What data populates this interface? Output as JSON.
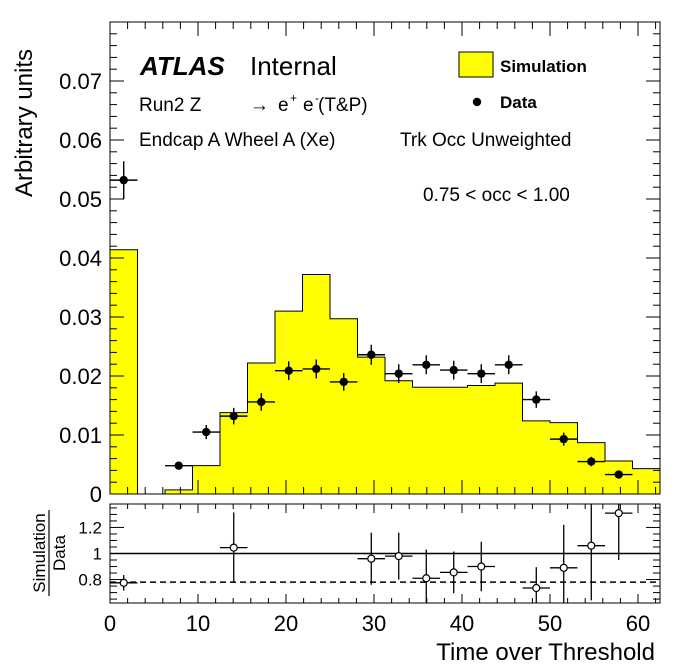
{
  "chart_data": [
    {
      "type": "histogram",
      "ylabel": "Arbitrary units",
      "xlim": [
        0,
        62.5
      ],
      "ylim": [
        0,
        0.08
      ],
      "y_ticks": [
        "0",
        "0.01",
        "0.02",
        "0.03",
        "0.04",
        "0.05",
        "0.06",
        "0.07"
      ],
      "y_tick_values": [
        0,
        0.01,
        0.02,
        0.03,
        0.04,
        0.05,
        0.06,
        0.07
      ],
      "annotations": {
        "atlas": "ATLAS",
        "internal": "Internal",
        "process_prefix": "Run2 Z",
        "process_arrow": "→",
        "process_e1": "e",
        "process_plus": "+",
        "process_e2": "e",
        "process_minus": "-",
        "process_suffix": "(T&P)",
        "region": "Endcap A Wheel A (Xe)",
        "weighting": "Trk Occ Unweighted",
        "occupancy": "0.75 < occ < 1.00"
      },
      "legend": {
        "placement": "top-right",
        "entries": [
          "Simulation",
          "Data"
        ]
      },
      "bin_edges": [
        0,
        3.125,
        6.25,
        9.375,
        12.5,
        15.625,
        18.75,
        21.875,
        25,
        28.125,
        31.25,
        34.375,
        37.5,
        40.625,
        43.75,
        46.875,
        50,
        53.125,
        56.25,
        59.375
      ],
      "series": [
        {
          "name": "Simulation",
          "color": "#ffff00",
          "values": [
            0.0414,
            0,
            0.0007,
            0.0048,
            0.0138,
            0.0222,
            0.031,
            0.0372,
            0.0297,
            0.0232,
            0.0192,
            0.0181,
            0.0181,
            0.0184,
            0.0188,
            0.0124,
            0.0121,
            0.0087,
            0.0056,
            0.0043
          ]
        },
        {
          "name": "Data",
          "color": "#000000",
          "x": [
            1.56,
            7.81,
            10.94,
            14.06,
            17.19,
            20.31,
            23.44,
            26.56,
            29.69,
            32.81,
            35.94,
            39.06,
            42.19,
            45.31,
            48.44,
            51.56,
            54.69,
            57.81
          ],
          "values": [
            0.0532,
            0.0048,
            0.0105,
            0.0132,
            0.0156,
            0.0209,
            0.0212,
            0.019,
            0.0236,
            0.0204,
            0.0219,
            0.021,
            0.0204,
            0.0219,
            0.016,
            0.0093,
            0.0055,
            0.0033
          ],
          "errors": [
            0.0032,
            0.0005,
            0.0012,
            0.0014,
            0.0015,
            0.0016,
            0.0016,
            0.0015,
            0.0017,
            0.0016,
            0.0016,
            0.0016,
            0.0016,
            0.0016,
            0.0014,
            0.0011,
            0.0008,
            0.0006
          ]
        }
      ]
    },
    {
      "type": "scatter",
      "ylabel_num": "Simulation",
      "ylabel_den": "Data",
      "xlabel": "Time over Threshold",
      "xlim": [
        0,
        62.5
      ],
      "ylim": [
        0.62,
        1.38
      ],
      "x_ticks": [
        "0",
        "10",
        "20",
        "30",
        "40",
        "50",
        "60"
      ],
      "x_tick_values": [
        0,
        10,
        20,
        30,
        40,
        50,
        60
      ],
      "y_ticks": [
        "0.8",
        "1",
        "1.2"
      ],
      "y_tick_values": [
        0.8,
        1.0,
        1.2
      ],
      "reference_line": 1.0,
      "mean_line": 0.78,
      "series": [
        {
          "name": "Simulation/Data",
          "x": [
            1.56,
            14.06,
            29.69,
            32.81,
            35.94,
            39.06,
            42.19,
            48.44,
            51.56,
            54.69,
            57.81
          ],
          "values": [
            0.775,
            1.045,
            0.96,
            0.98,
            0.81,
            0.855,
            0.9,
            0.735,
            0.89,
            1.06,
            1.31
          ],
          "errors": [
            0.06,
            0.27,
            0.2,
            0.18,
            0.22,
            0.16,
            0.19,
            0.16,
            0.33,
            0.42,
            0.36
          ]
        }
      ]
    }
  ]
}
